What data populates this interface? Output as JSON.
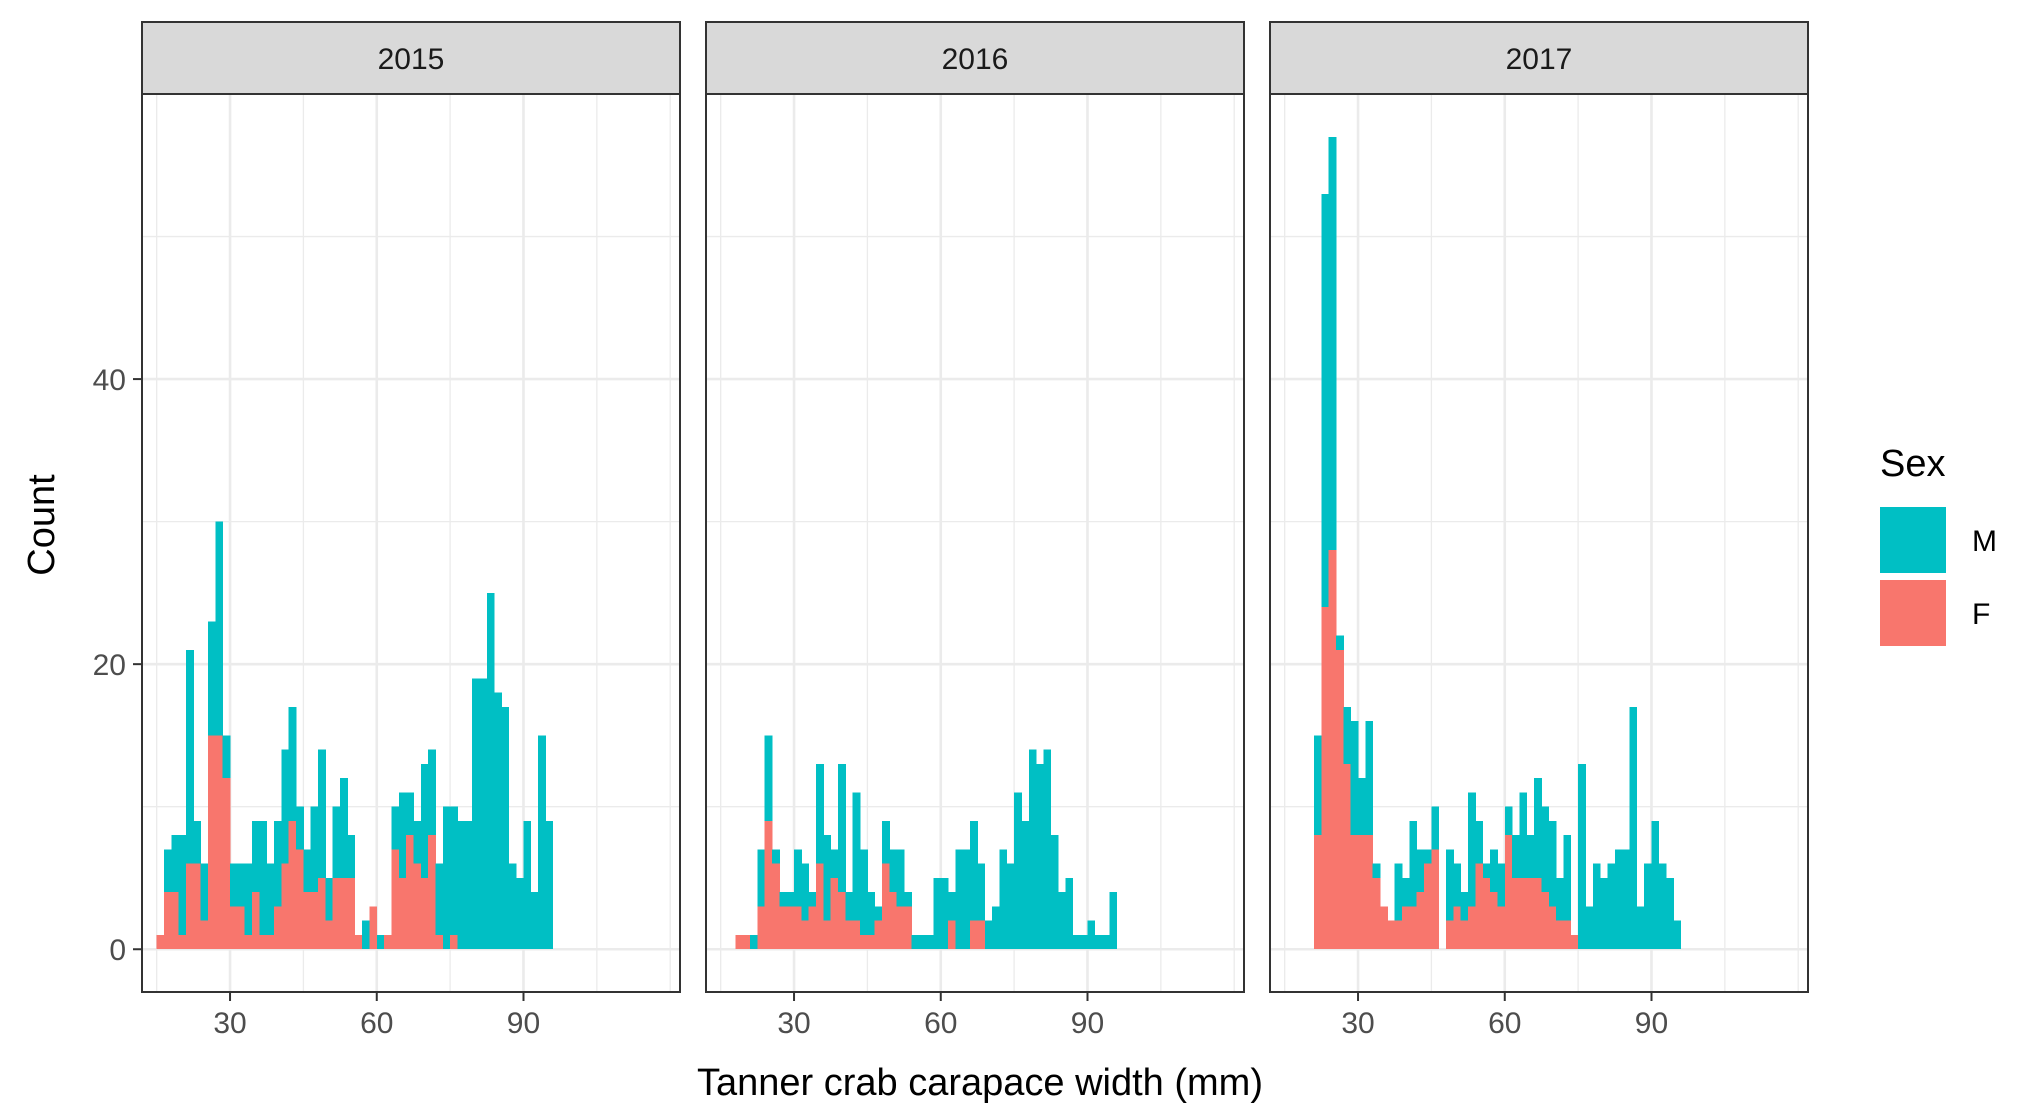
{
  "chart_data": {
    "type": "bar",
    "subtype": "stacked histogram, faceted by year",
    "xlabel": "Tanner crab carapace width (mm)",
    "ylabel": "Count",
    "xlim": [
      12,
      122
    ],
    "ylim": [
      -3,
      60
    ],
    "xticks": [
      30,
      60,
      90
    ],
    "yticks": [
      0,
      20,
      40
    ],
    "grid": true,
    "legend": {
      "title": "Sex",
      "position": "right",
      "entries": [
        {
          "label": "M",
          "color": "#00BFC4"
        },
        {
          "label": "F",
          "color": "#F8766D"
        }
      ]
    },
    "bin_start": 15,
    "bin_width": 1.5,
    "facets": [
      {
        "label": "2015",
        "series": [
          {
            "name": "F",
            "values": [
              1,
              4,
              4,
              1,
              6,
              6,
              2,
              15,
              15,
              12,
              3,
              3,
              1,
              4,
              1,
              1,
              3,
              6,
              9,
              7,
              4,
              4,
              5,
              2,
              5,
              5,
              5,
              1,
              0,
              3,
              0,
              1,
              7,
              5,
              8,
              6,
              5,
              8,
              1,
              0,
              1,
              0,
              0,
              0,
              0,
              0,
              0,
              0,
              0,
              0,
              0,
              0,
              0,
              0
            ]
          },
          {
            "name": "M",
            "values": [
              0,
              3,
              4,
              7,
              15,
              3,
              4,
              8,
              15,
              3,
              3,
              3,
              5,
              5,
              8,
              5,
              6,
              8,
              8,
              3,
              3,
              6,
              9,
              3,
              5,
              7,
              3,
              0,
              2,
              0,
              1,
              0,
              3,
              6,
              3,
              3,
              8,
              6,
              5,
              10,
              9,
              9,
              9,
              19,
              19,
              25,
              18,
              17,
              6,
              5,
              9,
              4,
              15,
              9
            ]
          }
        ]
      },
      {
        "label": "2016",
        "series": [
          {
            "name": "F",
            "values": [
              0,
              0,
              1,
              1,
              0,
              3,
              9,
              6,
              3,
              3,
              3,
              2,
              3,
              6,
              2,
              5,
              4,
              2,
              2,
              1,
              1,
              2,
              6,
              4,
              3,
              3,
              0,
              0,
              0,
              0,
              0,
              2,
              0,
              0,
              2,
              2,
              0,
              0,
              0,
              0,
              0,
              0,
              0,
              0,
              0,
              0,
              0,
              0,
              0,
              0,
              0,
              0,
              0,
              0
            ]
          },
          {
            "name": "M",
            "values": [
              0,
              0,
              0,
              0,
              1,
              4,
              6,
              1,
              1,
              1,
              4,
              4,
              1,
              7,
              6,
              2,
              9,
              2,
              9,
              6,
              3,
              1,
              3,
              3,
              4,
              1,
              1,
              1,
              1,
              5,
              5,
              2,
              7,
              7,
              7,
              4,
              2,
              3,
              7,
              6,
              11,
              9,
              14,
              13,
              14,
              8,
              4,
              5,
              1,
              1,
              2,
              1,
              1,
              4
            ]
          }
        ]
      },
      {
        "label": "2017",
        "series": [
          {
            "name": "F",
            "values": [
              0,
              0,
              0,
              0,
              8,
              24,
              28,
              21,
              13,
              8,
              8,
              8,
              5,
              3,
              2,
              2,
              3,
              3,
              4,
              6,
              7,
              0,
              2,
              3,
              2,
              3,
              6,
              5,
              4,
              3,
              8,
              5,
              5,
              5,
              5,
              4,
              3,
              2,
              2,
              1,
              0,
              0,
              0,
              0,
              0,
              0,
              0,
              0,
              0,
              0,
              0,
              0,
              0,
              0
            ]
          },
          {
            "name": "M",
            "values": [
              0,
              0,
              0,
              0,
              7,
              29,
              29,
              1,
              4,
              8,
              4,
              8,
              1,
              0,
              0,
              4,
              2,
              6,
              3,
              1,
              3,
              0,
              5,
              3,
              2,
              8,
              3,
              1,
              3,
              3,
              2,
              3,
              6,
              3,
              7,
              6,
              6,
              3,
              6,
              0,
              13,
              3,
              6,
              5,
              6,
              7,
              7,
              17,
              3,
              6,
              9,
              6,
              5,
              2
            ]
          }
        ]
      }
    ]
  }
}
